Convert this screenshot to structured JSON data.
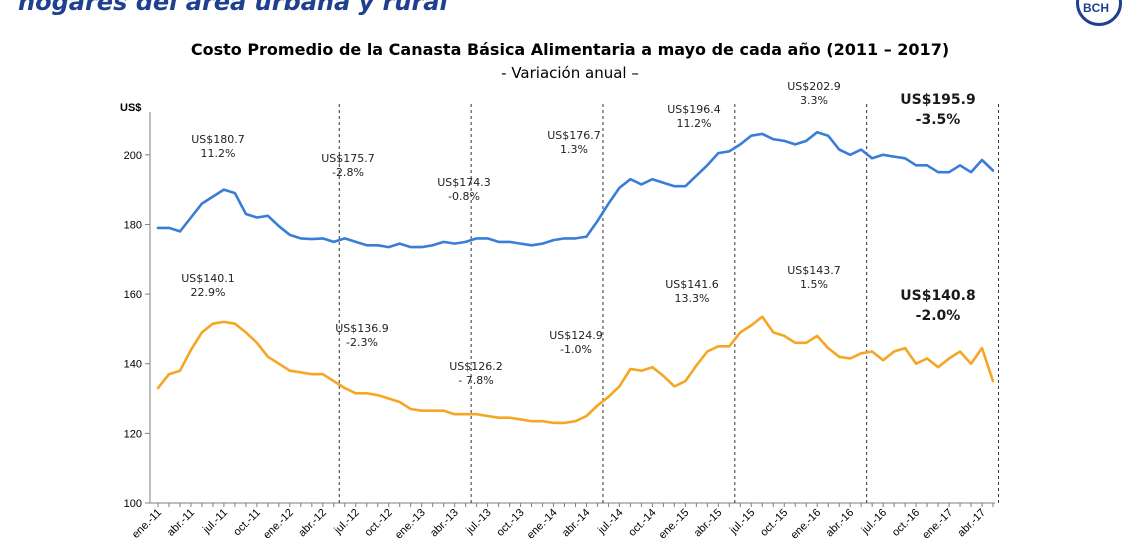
{
  "header": {
    "title": "hogares del área urbana y rural",
    "logo_icon": "institution-seal-icon"
  },
  "chart_data": {
    "type": "line",
    "title": "Costo Promedio de la Canasta Básica Alimentaria a mayo de cada año (2011 – 2017)",
    "subtitle": "- Variación anual –",
    "ylabel": "US$",
    "xlabel": "",
    "ylim": [
      100,
      210
    ],
    "yticks": [
      100,
      120,
      140,
      160,
      180,
      200
    ],
    "grid": false,
    "legend": "none",
    "x_tick_labels": [
      "ene.-11",
      "abr.-11",
      "jul.-11",
      "oct.-11",
      "ene.-12",
      "abr.-12",
      "jul.-12",
      "oct.-12",
      "ene.-13",
      "abr.-13",
      "jul.-13",
      "oct.-13",
      "ene.-14",
      "abr.-14",
      "jul.-14",
      "oct.-14",
      "ene.-15",
      "abr.-15",
      "jul.-15",
      "oct.-15",
      "ene.-16",
      "abr.-16",
      "jul.-16",
      "oct.-16",
      "ene.-17",
      "abr.-17"
    ],
    "period_boundaries": [
      16.5,
      28.5,
      40.5,
      52.5,
      64.5,
      76.5
    ],
    "series": [
      {
        "color": "#3a7dd8",
        "values": [
          179.0,
          179.0,
          178.0,
          182.0,
          186.0,
          188.0,
          190.0,
          189.0,
          183.0,
          182.0,
          182.5,
          179.5,
          177.0,
          176.0,
          175.8,
          176.0,
          175.0,
          176.0,
          175.0,
          174.0,
          174.0,
          173.5,
          174.5,
          173.5,
          173.5,
          174.0,
          175.0,
          174.5,
          175.0,
          176.0,
          176.0,
          175.0,
          175.0,
          174.5,
          174.0,
          174.5,
          175.5,
          176.0,
          176.0,
          176.5,
          181.0,
          186.0,
          190.5,
          193.0,
          191.5,
          193.0,
          192.0,
          191.0,
          191.0,
          194.0,
          197.0,
          200.5,
          201.0,
          203.0,
          205.5,
          206.0,
          204.5,
          204.0,
          203.0,
          204.0,
          206.5,
          205.5,
          201.5,
          200.0,
          201.5,
          199.0,
          200.0,
          199.5,
          199.0,
          197.0,
          197.0,
          195.0,
          195.0,
          197.0,
          195.0,
          198.5,
          195.5
        ]
      },
      {
        "color": "#f5a623",
        "values": [
          133.0,
          137.0,
          138.0,
          144.0,
          149.0,
          151.5,
          152.0,
          151.5,
          149.0,
          146.0,
          142.0,
          140.0,
          138.0,
          137.5,
          137.0,
          137.0,
          135.0,
          133.0,
          131.5,
          131.5,
          131.0,
          130.0,
          129.0,
          127.0,
          126.5,
          126.5,
          126.5,
          125.5,
          125.5,
          125.5,
          125.0,
          124.5,
          124.5,
          124.0,
          123.5,
          123.5,
          123.0,
          123.0,
          123.5,
          125.0,
          128.0,
          130.5,
          133.5,
          138.5,
          138.0,
          139.0,
          136.5,
          133.5,
          135.0,
          139.5,
          143.5,
          145.0,
          145.0,
          149.0,
          151.0,
          153.5,
          149.0,
          148.0,
          146.0,
          146.0,
          148.0,
          144.5,
          142.0,
          141.5,
          143.0,
          143.5,
          141.0,
          143.5,
          144.5,
          140.0,
          141.5,
          139.0,
          141.5,
          143.5,
          140.0,
          144.5,
          135.0
        ]
      }
    ],
    "annotations": [
      {
        "series": 0,
        "lines": [
          "US$180.7",
          "11.2%"
        ],
        "bold": false
      },
      {
        "series": 0,
        "lines": [
          "US$175.7",
          "-2.8%"
        ],
        "bold": false
      },
      {
        "series": 0,
        "lines": [
          "US$174.3",
          "-0.8%"
        ],
        "bold": false
      },
      {
        "series": 0,
        "lines": [
          "US$176.7",
          "1.3%"
        ],
        "bold": false
      },
      {
        "series": 0,
        "lines": [
          "US$196.4",
          "11.2%"
        ],
        "bold": false
      },
      {
        "series": 0,
        "lines": [
          "US$202.9",
          "3.3%"
        ],
        "bold": false
      },
      {
        "series": 0,
        "lines": [
          "US$195.9",
          "-3.5%"
        ],
        "bold": true
      },
      {
        "series": 1,
        "lines": [
          "US$140.1",
          "22.9%"
        ],
        "bold": false
      },
      {
        "series": 1,
        "lines": [
          "US$136.9",
          "-2.3%"
        ],
        "bold": false
      },
      {
        "series": 1,
        "lines": [
          "US$126.2",
          "- 7.8%"
        ],
        "bold": false
      },
      {
        "series": 1,
        "lines": [
          "US$124.9",
          "-1.0%"
        ],
        "bold": false
      },
      {
        "series": 1,
        "lines": [
          "US$141.6",
          "13.3%"
        ],
        "bold": false
      },
      {
        "series": 1,
        "lines": [
          "US$143.7",
          "1.5%"
        ],
        "bold": false
      },
      {
        "series": 1,
        "lines": [
          "US$140.8",
          "-2.0%"
        ],
        "bold": true
      }
    ]
  }
}
